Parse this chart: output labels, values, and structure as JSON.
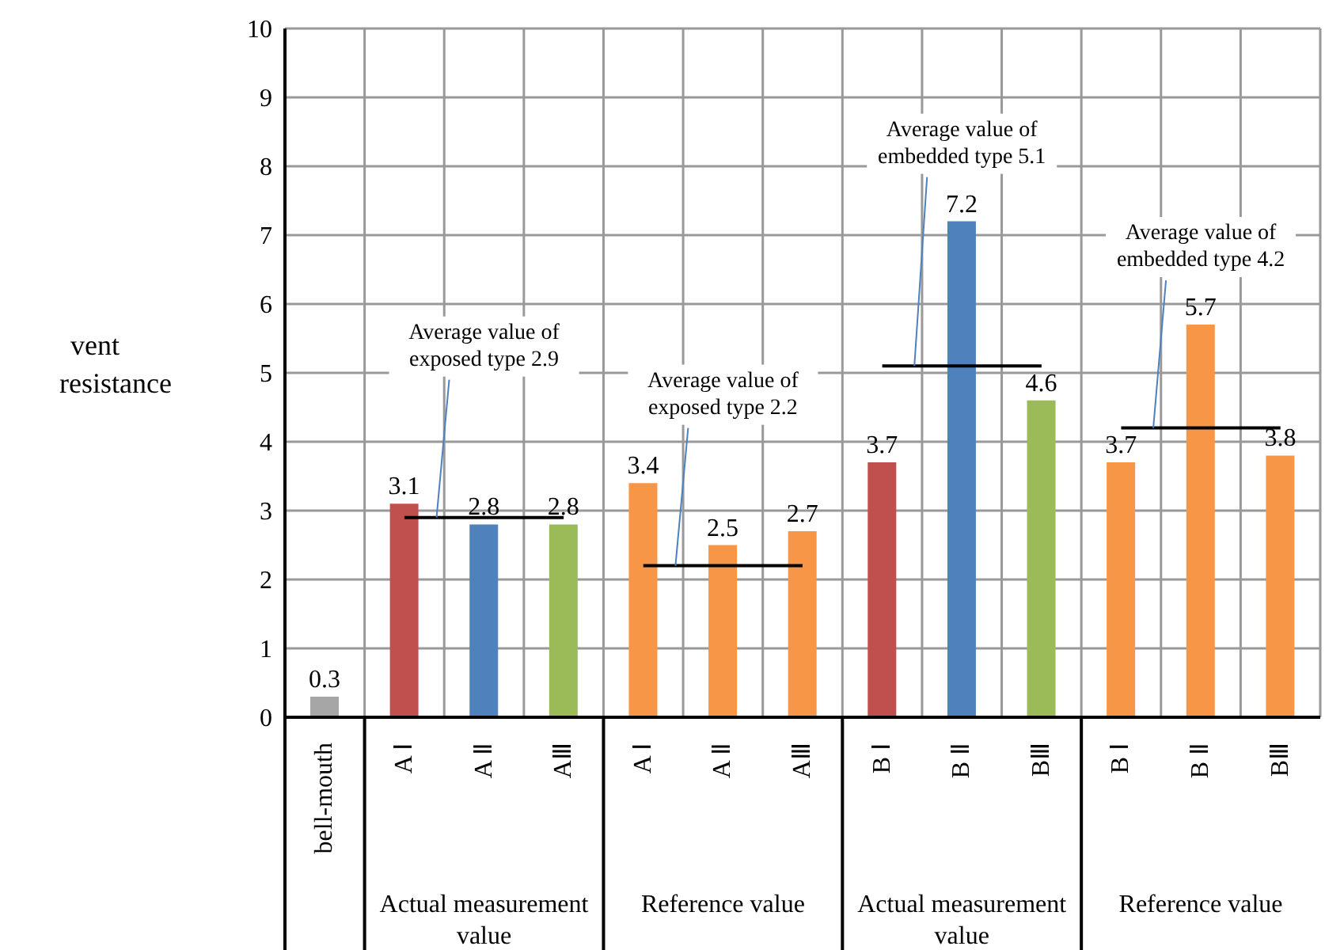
{
  "chart_data": {
    "type": "bar",
    "ylabel": "vent resistance",
    "categories": [
      "bell-mouth",
      "A Ⅰ",
      "A Ⅱ",
      "AⅢ",
      "A Ⅰ",
      "A Ⅱ",
      "AⅢ",
      "B Ⅰ",
      "B Ⅱ",
      "BⅢ",
      "B Ⅰ",
      "B Ⅱ",
      "BⅢ"
    ],
    "series": [
      {
        "values": [
          0.3,
          3.1,
          2.8,
          2.8,
          3.4,
          2.5,
          2.7,
          3.7,
          7.2,
          4.6,
          3.7,
          5.7,
          3.8
        ],
        "value_labels": [
          "0.3",
          "3.1",
          "2.8",
          "2.8",
          "3.4",
          "2.5",
          "2.7",
          "3.7",
          "7.2",
          "4.6",
          "3.7",
          "5.7",
          "3.8"
        ],
        "colors": [
          "#a6a6a6",
          "#c0504d",
          "#4f81bd",
          "#9bbb59",
          "#f79646",
          "#f79646",
          "#f79646",
          "#c0504d",
          "#4f81bd",
          "#9bbb59",
          "#f79646",
          "#f79646",
          "#f79646"
        ]
      },
      {
        "type": "line",
        "name": "Average value of exposed type 2.9",
        "color": "#000000",
        "values": [
          null,
          2.9,
          2.9,
          2.9,
          null,
          null,
          null,
          null,
          null,
          null,
          null,
          null,
          null
        ]
      },
      {
        "type": "line",
        "name": "Average value of exposed type 2.2",
        "color": "#000000",
        "values": [
          null,
          null,
          null,
          null,
          2.2,
          2.2,
          2.2,
          null,
          null,
          null,
          null,
          null,
          null
        ]
      },
      {
        "type": "line",
        "name": "Average value of embedded type 5.1",
        "color": "#000000",
        "values": [
          null,
          null,
          null,
          null,
          null,
          null,
          null,
          5.1,
          5.1,
          5.1,
          null,
          null,
          null
        ]
      },
      {
        "type": "line",
        "name": "Average value of embedded type 4.2",
        "color": "#000000",
        "values": [
          null,
          null,
          null,
          null,
          null,
          null,
          null,
          null,
          null,
          null,
          4.2,
          4.2,
          4.2
        ]
      }
    ],
    "annotations": [
      "Actual measurement value",
      "Reference value",
      "Actual measurement value",
      "Reference value"
    ],
    "ylim": [
      0,
      10
    ],
    "yticks": [
      0,
      1,
      2,
      3,
      4,
      5,
      6,
      7,
      8,
      9,
      10
    ],
    "grid": true
  }
}
